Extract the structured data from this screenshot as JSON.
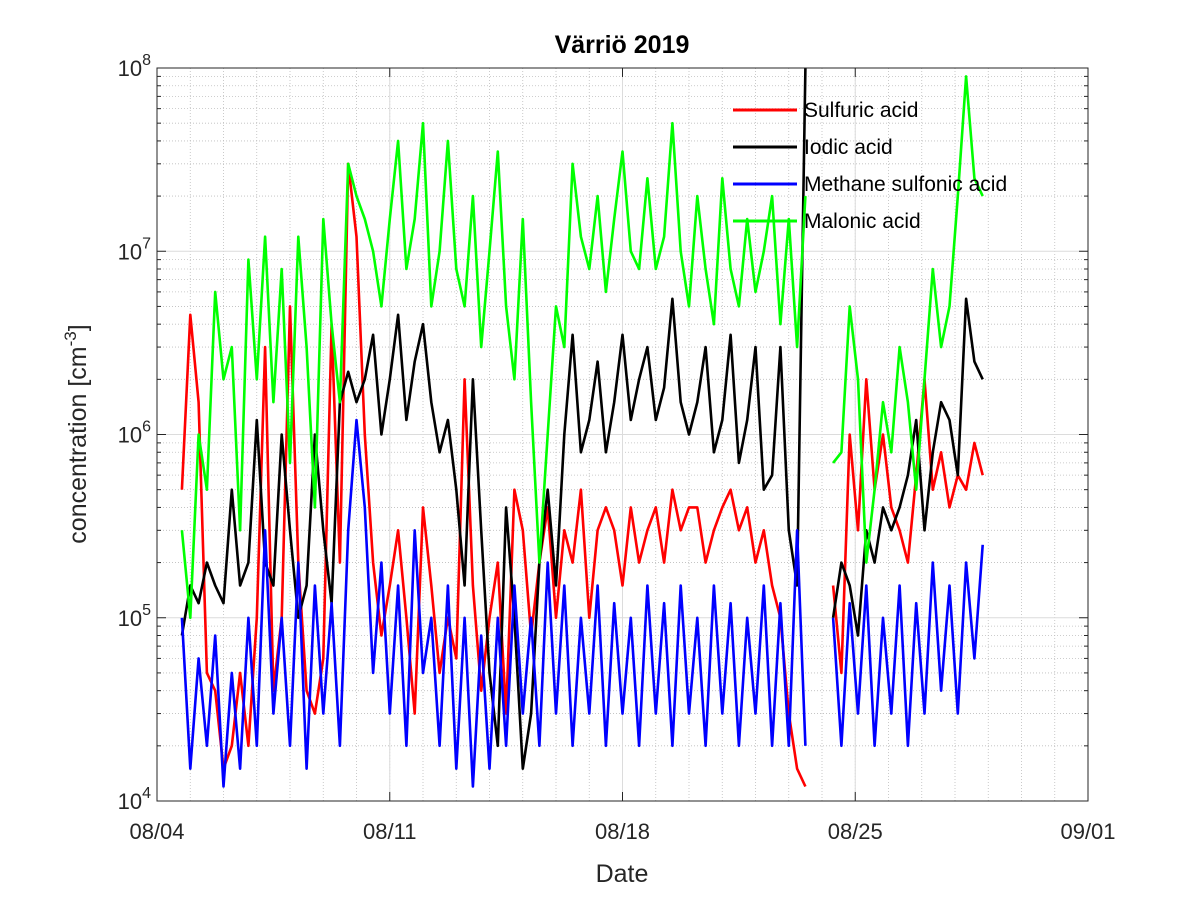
{
  "chart_data": {
    "type": "line",
    "title": "Värriö 2019",
    "xlabel": "Date",
    "ylabel": "concentration [cm",
    "ylabel_superscript": "-3",
    "ylabel_suffix": "]",
    "y_scale": "log",
    "ylim": [
      10000,
      100000000
    ],
    "xlim": [
      "08/04",
      "09/01"
    ],
    "x_ticks": [
      "08/04",
      "08/11",
      "08/18",
      "08/25",
      "09/01"
    ],
    "y_ticks": [
      {
        "base": "10",
        "exp": "4",
        "value": 10000
      },
      {
        "base": "10",
        "exp": "5",
        "value": 100000
      },
      {
        "base": "10",
        "exp": "6",
        "value": 1000000
      },
      {
        "base": "10",
        "exp": "7",
        "value": 10000000
      },
      {
        "base": "10",
        "exp": "8",
        "value": 100000000
      }
    ],
    "grid": true,
    "minor_grid": true,
    "legend_position": "top-right",
    "gaps": [
      [
        "08/23 12:00",
        "08/24 08:00"
      ]
    ],
    "series": [
      {
        "name": "Sulfuric acid",
        "color": "#ff0000",
        "x": [
          "08/04 18:00",
          "08/05 00:00",
          "08/05 06:00",
          "08/05 12:00",
          "08/05 18:00",
          "08/06 00:00",
          "08/06 06:00",
          "08/06 12:00",
          "08/06 18:00",
          "08/07 00:00",
          "08/07 06:00",
          "08/07 12:00",
          "08/07 18:00",
          "08/08 00:00",
          "08/08 06:00",
          "08/08 12:00",
          "08/08 18:00",
          "08/09 00:00",
          "08/09 06:00",
          "08/09 12:00",
          "08/09 18:00",
          "08/10 00:00",
          "08/10 06:00",
          "08/10 12:00",
          "08/10 18:00",
          "08/11 00:00",
          "08/11 06:00",
          "08/11 12:00",
          "08/11 18:00",
          "08/12 00:00",
          "08/12 06:00",
          "08/12 12:00",
          "08/12 18:00",
          "08/13 00:00",
          "08/13 06:00",
          "08/13 12:00",
          "08/13 18:00",
          "08/14 00:00",
          "08/14 06:00",
          "08/14 12:00",
          "08/14 18:00",
          "08/15 00:00",
          "08/15 06:00",
          "08/15 12:00",
          "08/15 18:00",
          "08/16 00:00",
          "08/16 06:00",
          "08/16 12:00",
          "08/16 18:00",
          "08/17 00:00",
          "08/17 06:00",
          "08/17 12:00",
          "08/17 18:00",
          "08/18 00:00",
          "08/18 06:00",
          "08/18 12:00",
          "08/18 18:00",
          "08/19 00:00",
          "08/19 06:00",
          "08/19 12:00",
          "08/19 18:00",
          "08/20 00:00",
          "08/20 06:00",
          "08/20 12:00",
          "08/20 18:00",
          "08/21 00:00",
          "08/21 06:00",
          "08/21 12:00",
          "08/21 18:00",
          "08/22 00:00",
          "08/22 06:00",
          "08/22 12:00",
          "08/22 18:00",
          "08/23 00:00",
          "08/23 06:00",
          "08/23 12:00",
          "08/24 08:00",
          "08/24 14:00",
          "08/24 20:00",
          "08/25 02:00",
          "08/25 08:00",
          "08/25 14:00",
          "08/25 20:00",
          "08/26 02:00",
          "08/26 08:00",
          "08/26 14:00",
          "08/26 20:00",
          "08/27 02:00",
          "08/27 08:00",
          "08/27 14:00",
          "08/27 20:00",
          "08/28 02:00",
          "08/28 08:00",
          "08/28 14:00",
          "08/28 20:00"
        ],
        "values": [
          500000,
          4500000,
          1500000,
          50000,
          40000,
          15000,
          20000,
          50000,
          20000,
          100000,
          3000000,
          40000,
          100000,
          5000000,
          200000,
          40000,
          30000,
          60000,
          4000000,
          200000,
          30000000,
          12000000,
          1000000,
          200000,
          80000,
          150000,
          300000,
          100000,
          30000,
          400000,
          150000,
          50000,
          100000,
          60000,
          2000000,
          150000,
          40000,
          100000,
          200000,
          30000,
          500000,
          300000,
          80000,
          200000,
          400000,
          100000,
          300000,
          200000,
          500000,
          100000,
          300000,
          400000,
          300000,
          150000,
          400000,
          200000,
          300000,
          400000,
          200000,
          500000,
          300000,
          400000,
          400000,
          200000,
          300000,
          400000,
          500000,
          300000,
          400000,
          200000,
          300000,
          150000,
          100000,
          30000,
          15000,
          12000,
          150000,
          50000,
          1000000,
          300000,
          2000000,
          500000,
          1000000,
          400000,
          300000,
          200000,
          600000,
          2000000,
          500000,
          800000,
          400000,
          600000,
          500000,
          900000,
          600000
        ]
      },
      {
        "name": "Iodic acid",
        "color": "#000000",
        "x": [
          "08/04 18:00",
          "08/05 00:00",
          "08/05 06:00",
          "08/05 12:00",
          "08/05 18:00",
          "08/06 00:00",
          "08/06 06:00",
          "08/06 12:00",
          "08/06 18:00",
          "08/07 00:00",
          "08/07 06:00",
          "08/07 12:00",
          "08/07 18:00",
          "08/08 00:00",
          "08/08 06:00",
          "08/08 12:00",
          "08/08 18:00",
          "08/09 00:00",
          "08/09 06:00",
          "08/09 12:00",
          "08/09 18:00",
          "08/10 00:00",
          "08/10 06:00",
          "08/10 12:00",
          "08/10 18:00",
          "08/11 00:00",
          "08/11 06:00",
          "08/11 12:00",
          "08/11 18:00",
          "08/12 00:00",
          "08/12 06:00",
          "08/12 12:00",
          "08/12 18:00",
          "08/13 00:00",
          "08/13 06:00",
          "08/13 12:00",
          "08/13 18:00",
          "08/14 00:00",
          "08/14 06:00",
          "08/14 12:00",
          "08/14 18:00",
          "08/15 00:00",
          "08/15 06:00",
          "08/15 12:00",
          "08/15 18:00",
          "08/16 00:00",
          "08/16 06:00",
          "08/16 12:00",
          "08/16 18:00",
          "08/17 00:00",
          "08/17 06:00",
          "08/17 12:00",
          "08/17 18:00",
          "08/18 00:00",
          "08/18 06:00",
          "08/18 12:00",
          "08/18 18:00",
          "08/19 00:00",
          "08/19 06:00",
          "08/19 12:00",
          "08/19 18:00",
          "08/20 00:00",
          "08/20 06:00",
          "08/20 12:00",
          "08/20 18:00",
          "08/21 00:00",
          "08/21 06:00",
          "08/21 12:00",
          "08/21 18:00",
          "08/22 00:00",
          "08/22 06:00",
          "08/22 12:00",
          "08/22 18:00",
          "08/23 00:00",
          "08/23 06:00",
          "08/23 12:00",
          "08/24 08:00",
          "08/24 14:00",
          "08/24 20:00",
          "08/25 02:00",
          "08/25 08:00",
          "08/25 14:00",
          "08/25 20:00",
          "08/26 02:00",
          "08/26 08:00",
          "08/26 14:00",
          "08/26 20:00",
          "08/27 02:00",
          "08/27 08:00",
          "08/27 14:00",
          "08/27 20:00",
          "08/28 02:00",
          "08/28 08:00",
          "08/28 14:00",
          "08/28 20:00"
        ],
        "values": [
          80000,
          150000,
          120000,
          200000,
          150000,
          120000,
          500000,
          150000,
          200000,
          1200000,
          200000,
          150000,
          1000000,
          300000,
          100000,
          150000,
          1000000,
          300000,
          120000,
          1500000,
          2200000,
          1500000,
          2000000,
          3500000,
          1000000,
          2000000,
          4500000,
          1200000,
          2500000,
          4000000,
          1500000,
          800000,
          1200000,
          500000,
          150000,
          2000000,
          300000,
          50000,
          20000,
          400000,
          100000,
          15000,
          30000,
          200000,
          500000,
          150000,
          1000000,
          3500000,
          800000,
          1200000,
          2500000,
          800000,
          1500000,
          3500000,
          1200000,
          2000000,
          3000000,
          1200000,
          1800000,
          5500000,
          1500000,
          1000000,
          1500000,
          3000000,
          800000,
          1200000,
          3500000,
          700000,
          1200000,
          3000000,
          500000,
          600000,
          3000000,
          300000,
          150000,
          100000000,
          100000,
          200000,
          150000,
          80000,
          300000,
          200000,
          400000,
          300000,
          400000,
          600000,
          1200000,
          300000,
          800000,
          1500000,
          1200000,
          600000,
          5500000,
          2500000,
          2000000
        ]
      },
      {
        "name": "Methane sulfonic acid",
        "color": "#0000ff",
        "x": [
          "08/04 18:00",
          "08/05 00:00",
          "08/05 06:00",
          "08/05 12:00",
          "08/05 18:00",
          "08/06 00:00",
          "08/06 06:00",
          "08/06 12:00",
          "08/06 18:00",
          "08/07 00:00",
          "08/07 06:00",
          "08/07 12:00",
          "08/07 18:00",
          "08/08 00:00",
          "08/08 06:00",
          "08/08 12:00",
          "08/08 18:00",
          "08/09 00:00",
          "08/09 06:00",
          "08/09 12:00",
          "08/09 18:00",
          "08/10 00:00",
          "08/10 06:00",
          "08/10 12:00",
          "08/10 18:00",
          "08/11 00:00",
          "08/11 06:00",
          "08/11 12:00",
          "08/11 18:00",
          "08/12 00:00",
          "08/12 06:00",
          "08/12 12:00",
          "08/12 18:00",
          "08/13 00:00",
          "08/13 06:00",
          "08/13 12:00",
          "08/13 18:00",
          "08/14 00:00",
          "08/14 06:00",
          "08/14 12:00",
          "08/14 18:00",
          "08/15 00:00",
          "08/15 06:00",
          "08/15 12:00",
          "08/15 18:00",
          "08/16 00:00",
          "08/16 06:00",
          "08/16 12:00",
          "08/16 18:00",
          "08/17 00:00",
          "08/17 06:00",
          "08/17 12:00",
          "08/17 18:00",
          "08/18 00:00",
          "08/18 06:00",
          "08/18 12:00",
          "08/18 18:00",
          "08/19 00:00",
          "08/19 06:00",
          "08/19 12:00",
          "08/19 18:00",
          "08/20 00:00",
          "08/20 06:00",
          "08/20 12:00",
          "08/20 18:00",
          "08/21 00:00",
          "08/21 06:00",
          "08/21 12:00",
          "08/21 18:00",
          "08/22 00:00",
          "08/22 06:00",
          "08/22 12:00",
          "08/22 18:00",
          "08/23 00:00",
          "08/23 06:00",
          "08/23 12:00",
          "08/24 08:00",
          "08/24 14:00",
          "08/24 20:00",
          "08/25 02:00",
          "08/25 08:00",
          "08/25 14:00",
          "08/25 20:00",
          "08/26 02:00",
          "08/26 08:00",
          "08/26 14:00",
          "08/26 20:00",
          "08/27 02:00",
          "08/27 08:00",
          "08/27 14:00",
          "08/27 20:00",
          "08/28 02:00",
          "08/28 08:00",
          "08/28 14:00",
          "08/28 20:00"
        ],
        "values": [
          100000,
          15000,
          60000,
          20000,
          80000,
          12000,
          50000,
          15000,
          100000,
          20000,
          300000,
          30000,
          100000,
          20000,
          200000,
          15000,
          150000,
          30000,
          120000,
          20000,
          300000,
          1200000,
          400000,
          50000,
          200000,
          30000,
          150000,
          20000,
          300000,
          50000,
          100000,
          20000,
          150000,
          15000,
          100000,
          12000,
          80000,
          15000,
          100000,
          20000,
          150000,
          30000,
          100000,
          20000,
          200000,
          30000,
          150000,
          20000,
          100000,
          30000,
          150000,
          20000,
          120000,
          30000,
          100000,
          20000,
          150000,
          30000,
          120000,
          20000,
          150000,
          30000,
          100000,
          20000,
          150000,
          30000,
          120000,
          20000,
          100000,
          30000,
          150000,
          20000,
          120000,
          20000,
          300000,
          20000,
          100000,
          20000,
          120000,
          30000,
          150000,
          20000,
          100000,
          30000,
          150000,
          20000,
          120000,
          30000,
          200000,
          40000,
          150000,
          30000,
          200000,
          60000,
          250000
        ]
      },
      {
        "name": "Malonic acid",
        "color": "#00ff00",
        "x": [
          "08/04 18:00",
          "08/05 00:00",
          "08/05 06:00",
          "08/05 12:00",
          "08/05 18:00",
          "08/06 00:00",
          "08/06 06:00",
          "08/06 12:00",
          "08/06 18:00",
          "08/07 00:00",
          "08/07 06:00",
          "08/07 12:00",
          "08/07 18:00",
          "08/08 00:00",
          "08/08 06:00",
          "08/08 12:00",
          "08/08 18:00",
          "08/09 00:00",
          "08/09 06:00",
          "08/09 12:00",
          "08/09 18:00",
          "08/10 00:00",
          "08/10 06:00",
          "08/10 12:00",
          "08/10 18:00",
          "08/11 00:00",
          "08/11 06:00",
          "08/11 12:00",
          "08/11 18:00",
          "08/12 00:00",
          "08/12 06:00",
          "08/12 12:00",
          "08/12 18:00",
          "08/13 00:00",
          "08/13 06:00",
          "08/13 12:00",
          "08/13 18:00",
          "08/14 00:00",
          "08/14 06:00",
          "08/14 12:00",
          "08/14 18:00",
          "08/15 00:00",
          "08/15 06:00",
          "08/15 12:00",
          "08/15 18:00",
          "08/16 00:00",
          "08/16 06:00",
          "08/16 12:00",
          "08/16 18:00",
          "08/17 00:00",
          "08/17 06:00",
          "08/17 12:00",
          "08/17 18:00",
          "08/18 00:00",
          "08/18 06:00",
          "08/18 12:00",
          "08/18 18:00",
          "08/19 00:00",
          "08/19 06:00",
          "08/19 12:00",
          "08/19 18:00",
          "08/20 00:00",
          "08/20 06:00",
          "08/20 12:00",
          "08/20 18:00",
          "08/21 00:00",
          "08/21 06:00",
          "08/21 12:00",
          "08/21 18:00",
          "08/22 00:00",
          "08/22 06:00",
          "08/22 12:00",
          "08/22 18:00",
          "08/23 00:00",
          "08/23 06:00",
          "08/23 12:00",
          "08/24 08:00",
          "08/24 14:00",
          "08/24 20:00",
          "08/25 02:00",
          "08/25 08:00",
          "08/25 14:00",
          "08/25 20:00",
          "08/26 02:00",
          "08/26 08:00",
          "08/26 14:00",
          "08/26 20:00",
          "08/27 02:00",
          "08/27 08:00",
          "08/27 14:00",
          "08/27 20:00",
          "08/28 02:00",
          "08/28 08:00",
          "08/28 14:00",
          "08/28 20:00"
        ],
        "values": [
          300000,
          100000,
          1000000,
          500000,
          6000000,
          2000000,
          3000000,
          300000,
          9000000,
          2000000,
          12000000,
          1500000,
          8000000,
          700000,
          12000000,
          3000000,
          400000,
          15000000,
          4000000,
          1500000,
          30000000,
          20000000,
          15000000,
          10000000,
          5000000,
          15000000,
          40000000,
          8000000,
          15000000,
          50000000,
          5000000,
          10000000,
          40000000,
          8000000,
          5000000,
          20000000,
          3000000,
          10000000,
          35000000,
          5000000,
          2000000,
          15000000,
          1500000,
          200000,
          1000000,
          5000000,
          3000000,
          30000000,
          12000000,
          8000000,
          20000000,
          6000000,
          15000000,
          35000000,
          10000000,
          8000000,
          25000000,
          8000000,
          12000000,
          50000000,
          10000000,
          5000000,
          20000000,
          8000000,
          4000000,
          25000000,
          8000000,
          5000000,
          15000000,
          6000000,
          10000000,
          20000000,
          4000000,
          15000000,
          3000000,
          20000000,
          700000,
          800000,
          5000000,
          2000000,
          200000,
          500000,
          1500000,
          800000,
          3000000,
          1500000,
          500000,
          2000000,
          8000000,
          3000000,
          5000000,
          20000000,
          90000000,
          25000000,
          20000000
        ]
      }
    ]
  }
}
